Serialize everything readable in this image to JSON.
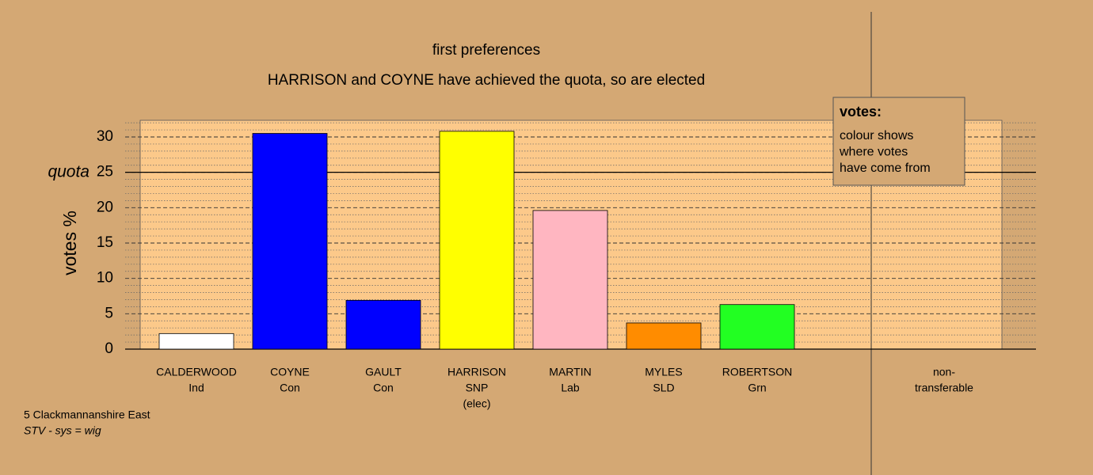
{
  "chart_data": {
    "type": "bar",
    "title": "first preferences",
    "subtitle": "HARRISON and COYNE have achieved the quota, so are elected",
    "y_label": "votes %",
    "categories": [
      "CALDERWOOD",
      "COYNE",
      "GAULT",
      "HARRISON",
      "MARTIN",
      "MYLES",
      "ROBERTSON",
      "non-"
    ],
    "parties": [
      "Ind",
      "Con",
      "Con",
      "SNP",
      "Lab",
      "SLD",
      "Grn",
      "transferable"
    ],
    "notes": [
      null,
      null,
      null,
      "(elec)",
      null,
      null,
      null,
      null
    ],
    "values": [
      2.2,
      30.5,
      6.9,
      30.8,
      19.6,
      3.7,
      6.3,
      null
    ],
    "colors": [
      "#ffffff",
      "#0000ff",
      "#0000ff",
      "#ffff00",
      "#ffb6c1",
      "#ff8c00",
      "#22ff22",
      null
    ],
    "ylim": [
      0,
      32.35
    ],
    "yticks": [
      0,
      5,
      10,
      15,
      20,
      25,
      30
    ],
    "minor_yticks": [
      1,
      2,
      3,
      4,
      6,
      7,
      8,
      9,
      11,
      12,
      13,
      14,
      16,
      17,
      18,
      19,
      21,
      22,
      23,
      24,
      26,
      27,
      28,
      29,
      31,
      32
    ],
    "grid": true,
    "quota": 25,
    "quota_label": "quota",
    "legend": {
      "title": "votes:",
      "lines": [
        "colour shows",
        "where votes",
        "have come from"
      ]
    },
    "footer": [
      "5 Clackmannanshire East",
      "STV - sys = wig"
    ]
  }
}
